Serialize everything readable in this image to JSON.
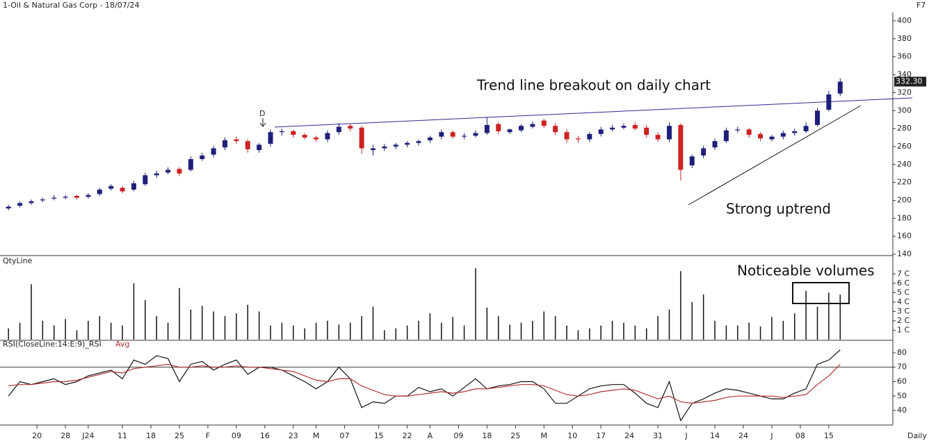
{
  "header": {
    "title": "1-Oil & Natural Gas Corp - 18/07/24",
    "shortcut": "F7",
    "period": "Daily"
  },
  "chart_data": [
    {
      "type": "candlestick",
      "annotations": [
        "Trend line breakout on daily chart",
        "Strong uptrend",
        "D"
      ],
      "up_color": "#1f1f7a",
      "down_color": "#cc2222",
      "xlim": [
        -0.5,
        77.5
      ],
      "ylim": [
        138.5,
        409.3
      ],
      "yticks": [
        140,
        160,
        180,
        200,
        220,
        240,
        260,
        280,
        300,
        320,
        340,
        360,
        380,
        400
      ],
      "last_price": {
        "value": 332.3,
        "label": "332.30"
      },
      "open": [
        191,
        194,
        197,
        200,
        202,
        203,
        205,
        204,
        207,
        213,
        214,
        212,
        218,
        228,
        231,
        235,
        234,
        246,
        251,
        259,
        268,
        266,
        256,
        263,
        276,
        277,
        273,
        270,
        268,
        276,
        283,
        281,
        256,
        258,
        260,
        262,
        264,
        267,
        271,
        276,
        271,
        272,
        275,
        285,
        276,
        278,
        282,
        289,
        283,
        276,
        269,
        268,
        274,
        279,
        281,
        284,
        281,
        273,
        268,
        284,
        239,
        250,
        259,
        266,
        278,
        279,
        274,
        268,
        271,
        275,
        277,
        284,
        301,
        319
      ],
      "high": [
        195,
        199,
        201,
        203,
        206,
        206,
        206,
        208,
        214,
        218,
        216,
        222,
        231,
        233,
        237,
        237,
        249,
        253,
        261,
        270,
        271,
        268,
        264,
        279,
        280,
        279,
        275,
        272,
        278,
        286,
        286,
        283,
        262,
        263,
        264,
        266,
        268,
        272,
        279,
        278,
        275,
        278,
        293,
        287,
        280,
        285,
        288,
        291,
        286,
        279,
        272,
        276,
        282,
        284,
        286,
        287,
        284,
        276,
        287,
        286,
        251,
        261,
        269,
        281,
        282,
        281,
        276,
        273,
        278,
        280,
        287,
        303,
        322,
        336
      ],
      "low": [
        189,
        192,
        195,
        198,
        200,
        201,
        201,
        202,
        205,
        211,
        208,
        210,
        216,
        225,
        229,
        227,
        232,
        244,
        248,
        256,
        263,
        253,
        253,
        260,
        272,
        270,
        268,
        265,
        265,
        273,
        277,
        252,
        250,
        255,
        257,
        259,
        261,
        264,
        268,
        269,
        268,
        270,
        273,
        274,
        274,
        276,
        280,
        281,
        273,
        264,
        264,
        265,
        271,
        277,
        279,
        278,
        270,
        265,
        265,
        222,
        236,
        247,
        256,
        264,
        275,
        270,
        266,
        266,
        268,
        272,
        275,
        282,
        299,
        316
      ],
      "close": [
        193,
        197,
        199,
        201,
        203,
        204,
        203,
        206,
        212,
        216,
        210,
        219,
        228,
        230,
        234,
        230,
        246,
        250,
        258,
        267,
        266,
        257,
        262,
        276,
        277,
        273,
        270,
        268,
        275,
        282,
        280,
        258,
        258,
        260,
        262,
        264,
        266,
        270,
        276,
        271,
        272,
        275,
        284,
        277,
        279,
        283,
        285,
        283,
        276,
        268,
        268,
        274,
        279,
        281,
        283,
        280,
        273,
        268,
        283,
        234,
        249,
        258,
        266,
        278,
        279,
        273,
        269,
        271,
        275,
        277,
        283,
        300,
        318,
        332.3
      ]
    },
    {
      "type": "bar",
      "title": "QtyLine",
      "annotations": [
        "Noticeable volumes"
      ],
      "color": "#111",
      "xlim": [
        -0.5,
        77.5
      ],
      "ylim": [
        0,
        8.8
      ],
      "yticks": [
        {
          "value": 1,
          "label": "1 C"
        },
        {
          "value": 2,
          "label": "2 C"
        },
        {
          "value": 3,
          "label": "3 C"
        },
        {
          "value": 4,
          "label": "4 C"
        },
        {
          "value": 5,
          "label": "5 C"
        },
        {
          "value": 6,
          "label": "6 C"
        },
        {
          "value": 7,
          "label": "7 C"
        }
      ],
      "values": [
        1.2,
        1.8,
        5.9,
        2.0,
        1.5,
        2.2,
        1.0,
        2.0,
        2.5,
        1.8,
        1.5,
        6.0,
        4.2,
        2.5,
        1.8,
        5.5,
        3.2,
        3.6,
        3.0,
        2.5,
        2.8,
        3.7,
        3.0,
        1.5,
        1.8,
        1.5,
        1.2,
        1.8,
        2.0,
        1.6,
        1.8,
        2.5,
        3.5,
        1.0,
        1.2,
        1.5,
        2.0,
        2.8,
        1.8,
        2.4,
        1.5,
        7.6,
        3.4,
        2.5,
        1.6,
        1.8,
        2.0,
        3.0,
        2.5,
        1.5,
        1.0,
        1.2,
        1.5,
        2.0,
        1.8,
        1.5,
        1.2,
        2.5,
        3.2,
        7.3,
        4.0,
        4.8,
        2.0,
        1.5,
        1.5,
        1.8,
        1.4,
        2.4,
        2.0,
        2.8,
        5.2,
        3.5,
        5.0,
        4.8
      ]
    },
    {
      "type": "line",
      "xlim": [
        -0.5,
        77.5
      ],
      "ylim": [
        29.9,
        87.7
      ],
      "yticks": [
        40,
        50,
        60,
        70,
        80
      ],
      "reference_line": 70,
      "xticks": [
        {
          "value": 2.5,
          "label": "20"
        },
        {
          "value": 5,
          "label": "28"
        },
        {
          "value": 7,
          "label": "J24"
        },
        {
          "value": 10,
          "label": "11"
        },
        {
          "value": 12.5,
          "label": "18"
        },
        {
          "value": 15,
          "label": "25"
        },
        {
          "value": 17.5,
          "label": "F"
        },
        {
          "value": 20,
          "label": "09"
        },
        {
          "value": 22.5,
          "label": "16"
        },
        {
          "value": 25,
          "label": "23"
        },
        {
          "value": 27,
          "label": "M"
        },
        {
          "value": 29.5,
          "label": "07"
        },
        {
          "value": 32.5,
          "label": "15"
        },
        {
          "value": 35,
          "label": "22"
        },
        {
          "value": 37,
          "label": "A"
        },
        {
          "value": 39.5,
          "label": "09"
        },
        {
          "value": 42,
          "label": "18"
        },
        {
          "value": 44.5,
          "label": "25"
        },
        {
          "value": 47,
          "label": "M"
        },
        {
          "value": 49.5,
          "label": "10"
        },
        {
          "value": 52,
          "label": "17"
        },
        {
          "value": 54.5,
          "label": "24"
        },
        {
          "value": 57,
          "label": "31"
        },
        {
          "value": 59.5,
          "label": "J"
        },
        {
          "value": 62,
          "label": "14"
        },
        {
          "value": 64.5,
          "label": "24"
        },
        {
          "value": 67,
          "label": "J"
        },
        {
          "value": 69.5,
          "label": "08"
        },
        {
          "value": 72,
          "label": "15"
        }
      ],
      "series": [
        {
          "name": "RSI(CloseLine:14:E:9)_RSI",
          "color": "#111",
          "values": [
            50,
            60,
            58,
            60,
            62,
            58,
            60,
            64,
            66,
            68,
            62,
            75,
            72,
            78,
            76,
            60,
            72,
            74,
            68,
            72,
            75,
            65,
            70,
            70,
            68,
            64,
            60,
            55,
            60,
            70,
            62,
            42,
            46,
            45,
            50,
            50,
            56,
            53,
            55,
            50,
            56,
            62,
            55,
            57,
            58,
            60,
            60,
            55,
            45,
            45,
            50,
            55,
            57,
            58,
            58,
            52,
            45,
            42,
            60,
            33,
            45,
            48,
            52,
            55,
            54,
            52,
            50,
            48,
            48,
            52,
            55,
            72,
            75,
            82
          ]
        },
        {
          "name": "Avg",
          "color": "#b03030",
          "values": [
            57,
            58,
            58,
            59,
            60,
            60,
            61,
            63,
            65,
            67,
            66,
            69,
            70,
            71,
            72,
            70,
            70,
            71,
            70,
            70,
            71,
            70,
            70,
            69,
            68,
            67,
            64,
            61,
            60,
            62,
            62,
            57,
            54,
            51,
            50,
            50,
            51,
            52,
            53,
            52,
            53,
            55,
            55,
            56,
            57,
            58,
            58,
            57,
            54,
            51,
            50,
            51,
            53,
            54,
            55,
            54,
            51,
            48,
            50,
            46,
            45,
            46,
            47,
            49,
            50,
            50,
            50,
            50,
            49,
            50,
            51,
            58,
            64,
            72
          ]
        }
      ]
    }
  ]
}
